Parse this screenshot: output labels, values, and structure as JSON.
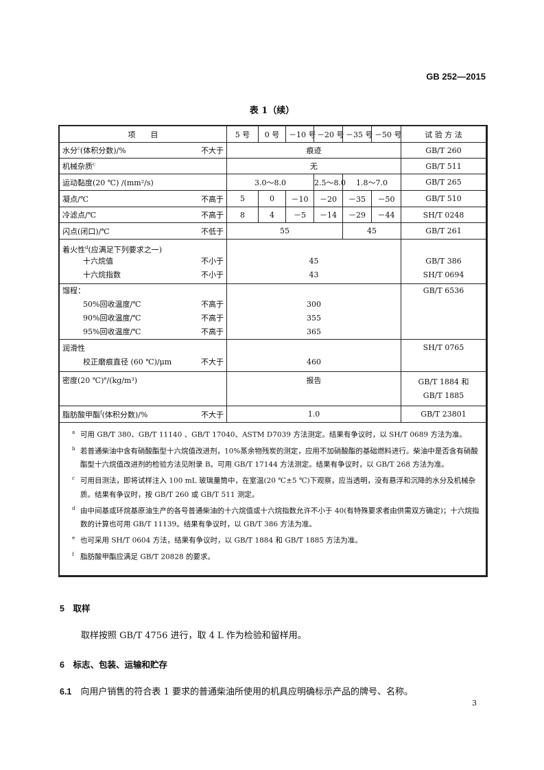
{
  "header": {
    "standard_no": "GB 252—2015"
  },
  "table": {
    "title": "表 1（续）",
    "headers": [
      "项　　目",
      "5 号",
      "0 号",
      "－10 号",
      "－20 号",
      "－35 号",
      "－50 号",
      "试 验 方 法"
    ],
    "rows": {
      "water": {
        "label": "水分",
        "sup": "c",
        "unit": "(体积分数)/%",
        "limit": "不大于",
        "value": "痕迹",
        "method": "GB/T 260"
      },
      "impurity": {
        "label": "机械杂质",
        "sup": "c",
        "value": "无",
        "method": "GB/T 511"
      },
      "viscosity": {
        "label": "运动黏度(20 ℃) /(mm²/s)",
        "v1": "3.0～8.0",
        "v2": "2.5～8.0",
        "v3": "1.8～7.0",
        "method": "GB/T 265"
      },
      "pour": {
        "label": "凝点/℃",
        "limit": "不高于",
        "values": [
          "5",
          "0",
          "－10",
          "－20",
          "－35",
          "－50"
        ],
        "method": "GB/T 510"
      },
      "cfpp": {
        "label": "冷滤点/℃",
        "limit": "不高于",
        "values": [
          "8",
          "4",
          "－5",
          "－14",
          "－29",
          "－44"
        ],
        "method": "SH/T 0248"
      },
      "flash": {
        "label": "闪点(闭口)/℃",
        "limit": "不低于",
        "v1": "55",
        "v2": "45",
        "method": "GB/T 261"
      },
      "ignition": {
        "label": "着火性",
        "sup": "d",
        "note": "(应满足下列要求之一)",
        "cetane_number": "十六烷值",
        "cn_limit": "不小于",
        "cn_value": "45",
        "cn_method": "GB/T 386",
        "cetane_index": "十六烷指数",
        "ci_limit": "不小于",
        "ci_value": "43",
        "ci_method": "SH/T 0694"
      },
      "distillation": {
        "label": "馏程：",
        "items": [
          {
            "label": "50%回收温度/℃",
            "limit": "不高于",
            "value": "300"
          },
          {
            "label": "90%回收温度/℃",
            "limit": "不高于",
            "value": "355"
          },
          {
            "label": "95%回收温度/℃",
            "limit": "不高于",
            "value": "365"
          }
        ],
        "method": "GB/T 6536"
      },
      "lubricity": {
        "label": "润滑性",
        "sub": "校正磨痕直径 (60 ℃)/μm",
        "limit": "不大于",
        "value": "460",
        "method": "SH/T 0765"
      },
      "density": {
        "label": "密度(20 ℃)",
        "sup": "e",
        "unit": "/(kg/m³)",
        "value": "报告",
        "method1": "GB/T 1884 和",
        "method2": "GB/T 1885"
      },
      "fame": {
        "label": "脂肪酸甲酯",
        "sup": "f",
        "unit": "(体积分数)/%",
        "limit": "不大于",
        "value": "1.0",
        "method": "GB/T 23801"
      }
    },
    "footnotes": [
      {
        "mark": "a",
        "text": "可用 GB/T 380、GB/T 11140 、GB/T 17040、ASTM D7039 方法测定。结果有争议时，以 SH/T 0689 方法为准。"
      },
      {
        "mark": "b",
        "text": "若普通柴油中含有硝酸酯型十六烷值改进剂，10%蒸余物残炭的测定，应用不加硝酸酯的基础燃料进行。柴油中是否含有硝酸酯型十六烷值改进剂的检验方法见附录 B。可用 GB/T 17144 方法测定。结果有争议时，以 GB/T 268 方法为准。"
      },
      {
        "mark": "c",
        "text": "可用目测法，即将试样注入 100 mL 玻璃量筒中，在室温(20 ℃±5 ℃)下观察，应当透明，没有悬浮和沉降的水分及机械杂质。结果有争议时，按 GB/T 260 或 GB/T 511 测定。"
      },
      {
        "mark": "d",
        "text": "由中间基或环烷基原油生产的各号普通柴油的十六烷值或十六烷指数允许不小于 40(有特殊要求者由供需双方确定)；十六烷指数的计算也可用 GB/T 11139。结果有争议时，以 GB/T 386 方法为准。"
      },
      {
        "mark": "e",
        "text": "也可采用 SH/T 0604 方法，结果有争议时，以 GB/T 1884 和 GB/T 1885 方法为准。"
      },
      {
        "mark": "f",
        "text": "脂肪酸甲酯应满足 GB/T 20828 的要求。"
      }
    ]
  },
  "sections": {
    "s5_num": "5",
    "s5_title": "取样",
    "s5_text": "取样按照 GB/T 4756 进行，取 4 L 作为检验和留样用。",
    "s6_num": "6",
    "s6_title": "标志、包装、运输和贮存",
    "s61_num": "6.1",
    "s61_text": "向用户销售的符合表 1 要求的普通柴油所使用的机具应明确标示产品的牌号、名称。"
  },
  "footer": {
    "page_number": "3"
  }
}
